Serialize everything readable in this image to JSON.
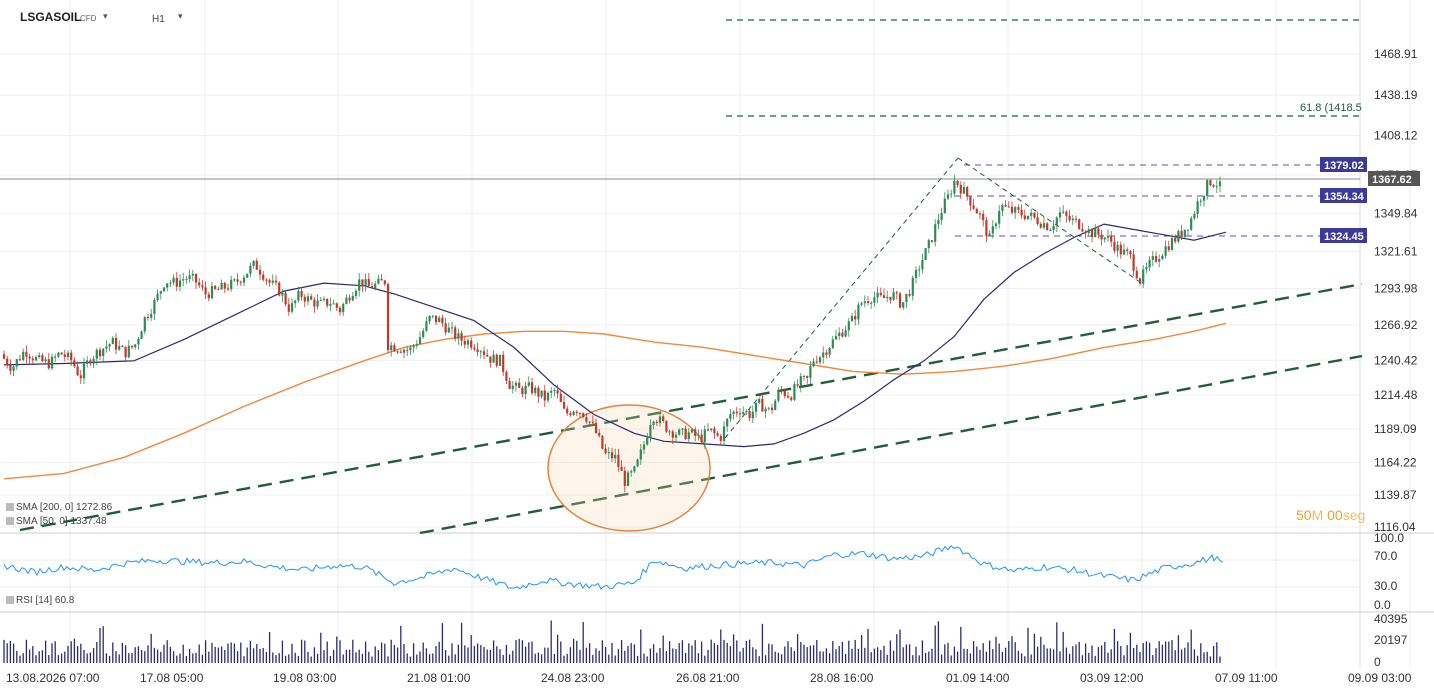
{
  "header": {
    "symbol": "LSGASOIL",
    "symbol_type": "CFD",
    "symbol_dropdown_icon": "chevron-down-icon",
    "timeframe": "H1",
    "timeframe_dropdown_icon": "chevron-down-icon"
  },
  "countdown": {
    "minutes": "50",
    "min_unit": "M",
    "seconds": "00",
    "sec_unit": "seg"
  },
  "legend": {
    "sma200": "SMA [200, 0] 1272.86",
    "sma50": "SMA [50, 0] 1337.48",
    "rsi": "RSI [14] 60.8"
  },
  "price_axis": {
    "labels": [
      "1468.91",
      "1438.19",
      "1408.12",
      "1378.67",
      "1349.84",
      "1321.61",
      "1293.98",
      "1266.92",
      "1240.42",
      "1214.48",
      "1189.09",
      "1164.22",
      "1139.87",
      "1116.04"
    ]
  },
  "rsi_axis": {
    "labels": [
      "100.0",
      "70.0",
      "30.0",
      "0.0"
    ]
  },
  "volume_axis": {
    "labels": [
      "40395",
      "20197",
      "0"
    ]
  },
  "time_axis": {
    "labels": [
      "13.08.2026 07:00",
      "17.08 05:00",
      "19.08 03:00",
      "21.08 01:00",
      "24.08 23:00",
      "26.08 21:00",
      "28.08 16:00",
      "01.09 14:00",
      "03.09 12:00",
      "07.09 11:00",
      "09.09 03:00"
    ]
  },
  "price_tags": {
    "current": "1367.62",
    "level1": "1379.02",
    "level2": "1354.34",
    "level3": "1324.45",
    "fib": "61.8 (1418.5"
  },
  "colors": {
    "sma200": "#f08a3c",
    "sma50": "#2b2b73",
    "rsi": "#2196f3",
    "volume": "#2b2b73",
    "bull": "#2e8b57",
    "bear": "#c0392b",
    "trend": "#1f5e3a",
    "tag_bg": "#3a3a9a",
    "current_tag_bg": "#555555",
    "ellipse": "#e8823a"
  },
  "chart_data": {
    "type": "candlestick",
    "title": "LSGASOIL H1",
    "ylim": [
      1105,
      1495
    ],
    "x_categories": [
      "13.08.2026 07:00",
      "17.08 05:00",
      "19.08 03:00",
      "21.08 01:00",
      "24.08 23:00",
      "26.08 21:00",
      "28.08 16:00",
      "01.09 14:00",
      "03.09 12:00",
      "07.09 11:00"
    ],
    "close_path": [
      [
        0,
        1245
      ],
      [
        12,
        1235
      ],
      [
        25,
        1248
      ],
      [
        38,
        1240
      ],
      [
        50,
        1238
      ],
      [
        60,
        1246
      ],
      [
        72,
        1240
      ],
      [
        80,
        1228
      ],
      [
        90,
        1242
      ],
      [
        100,
        1248
      ],
      [
        112,
        1254
      ],
      [
        125,
        1246
      ],
      [
        135,
        1252
      ],
      [
        145,
        1272
      ],
      [
        155,
        1284
      ],
      [
        165,
        1300
      ],
      [
        175,
        1298
      ],
      [
        185,
        1302
      ],
      [
        195,
        1300
      ],
      [
        205,
        1290
      ],
      [
        215,
        1292
      ],
      [
        225,
        1295
      ],
      [
        235,
        1298
      ],
      [
        245,
        1305
      ],
      [
        255,
        1312
      ],
      [
        262,
        1306
      ],
      [
        270,
        1298
      ],
      [
        280,
        1292
      ],
      [
        290,
        1278
      ],
      [
        300,
        1290
      ],
      [
        310,
        1285
      ],
      [
        320,
        1282
      ],
      [
        330,
        1284
      ],
      [
        340,
        1278
      ],
      [
        350,
        1290
      ],
      [
        360,
        1300
      ],
      [
        368,
        1295
      ],
      [
        378,
        1297
      ],
      [
        386,
        1300
      ],
      [
        388,
        1252
      ],
      [
        398,
        1250
      ],
      [
        410,
        1248
      ],
      [
        420,
        1258
      ],
      [
        430,
        1272
      ],
      [
        440,
        1270
      ],
      [
        450,
        1262
      ],
      [
        460,
        1256
      ],
      [
        470,
        1254
      ],
      [
        480,
        1250
      ],
      [
        490,
        1242
      ],
      [
        500,
        1240
      ],
      [
        510,
        1222
      ],
      [
        520,
        1218
      ],
      [
        530,
        1220
      ],
      [
        545,
        1212
      ],
      [
        555,
        1218
      ],
      [
        565,
        1200
      ],
      [
        575,
        1205
      ],
      [
        585,
        1200
      ],
      [
        595,
        1188
      ],
      [
        605,
        1170
      ],
      [
        615,
        1168
      ],
      [
        625,
        1150
      ],
      [
        635,
        1158
      ],
      [
        645,
        1180
      ],
      [
        652,
        1200
      ],
      [
        660,
        1195
      ],
      [
        670,
        1188
      ],
      [
        680,
        1185
      ],
      [
        690,
        1186
      ],
      [
        700,
        1182
      ],
      [
        710,
        1188
      ],
      [
        720,
        1182
      ],
      [
        730,
        1200
      ],
      [
        740,
        1204
      ],
      [
        750,
        1200
      ],
      [
        760,
        1208
      ],
      [
        770,
        1202
      ],
      [
        780,
        1218
      ],
      [
        790,
        1214
      ],
      [
        800,
        1224
      ],
      [
        808,
        1226
      ],
      [
        812,
        1240
      ],
      [
        822,
        1245
      ],
      [
        832,
        1254
      ],
      [
        842,
        1262
      ],
      [
        852,
        1270
      ],
      [
        862,
        1284
      ],
      [
        872,
        1288
      ],
      [
        882,
        1286
      ],
      [
        892,
        1290
      ],
      [
        902,
        1282
      ],
      [
        912,
        1296
      ],
      [
        920,
        1312
      ],
      [
        930,
        1328
      ],
      [
        940,
        1350
      ],
      [
        948,
        1362
      ],
      [
        955,
        1375
      ],
      [
        962,
        1368
      ],
      [
        970,
        1360
      ],
      [
        980,
        1348
      ],
      [
        990,
        1330
      ],
      [
        1000,
        1356
      ],
      [
        1010,
        1352
      ],
      [
        1020,
        1350
      ],
      [
        1030,
        1348
      ],
      [
        1040,
        1344
      ],
      [
        1050,
        1340
      ],
      [
        1060,
        1350
      ],
      [
        1070,
        1345
      ],
      [
        1080,
        1342
      ],
      [
        1090,
        1336
      ],
      [
        1100,
        1334
      ],
      [
        1110,
        1330
      ],
      [
        1120,
        1322
      ],
      [
        1130,
        1318
      ],
      [
        1140,
        1300
      ],
      [
        1150,
        1312
      ],
      [
        1160,
        1320
      ],
      [
        1170,
        1328
      ],
      [
        1180,
        1334
      ],
      [
        1190,
        1344
      ],
      [
        1200,
        1362
      ],
      [
        1210,
        1374
      ],
      [
        1218,
        1372
      ],
      [
        1222,
        1367
      ]
    ],
    "sma50_path": [
      [
        0,
        1237
      ],
      [
        60,
        1238
      ],
      [
        130,
        1240
      ],
      [
        180,
        1256
      ],
      [
        230,
        1274
      ],
      [
        280,
        1292
      ],
      [
        320,
        1298
      ],
      [
        360,
        1296
      ],
      [
        390,
        1290
      ],
      [
        430,
        1280
      ],
      [
        470,
        1270
      ],
      [
        510,
        1250
      ],
      [
        550,
        1222
      ],
      [
        590,
        1200
      ],
      [
        630,
        1186
      ],
      [
        660,
        1180
      ],
      [
        700,
        1178
      ],
      [
        740,
        1176
      ],
      [
        770,
        1178
      ],
      [
        800,
        1186
      ],
      [
        830,
        1196
      ],
      [
        860,
        1210
      ],
      [
        890,
        1226
      ],
      [
        920,
        1240
      ],
      [
        950,
        1258
      ],
      [
        980,
        1286
      ],
      [
        1010,
        1306
      ],
      [
        1040,
        1320
      ],
      [
        1070,
        1332
      ],
      [
        1100,
        1342
      ],
      [
        1130,
        1338
      ],
      [
        1160,
        1334
      ],
      [
        1190,
        1330
      ],
      [
        1222,
        1336
      ]
    ],
    "sma200_path": [
      [
        0,
        1152
      ],
      [
        60,
        1156
      ],
      [
        120,
        1168
      ],
      [
        180,
        1186
      ],
      [
        240,
        1206
      ],
      [
        300,
        1224
      ],
      [
        360,
        1240
      ],
      [
        400,
        1250
      ],
      [
        440,
        1256
      ],
      [
        480,
        1260
      ],
      [
        520,
        1262
      ],
      [
        560,
        1262
      ],
      [
        600,
        1260
      ],
      [
        650,
        1254
      ],
      [
        700,
        1250
      ],
      [
        750,
        1244
      ],
      [
        800,
        1238
      ],
      [
        850,
        1232
      ],
      [
        900,
        1230
      ],
      [
        950,
        1232
      ],
      [
        1000,
        1236
      ],
      [
        1050,
        1242
      ],
      [
        1100,
        1250
      ],
      [
        1150,
        1256
      ],
      [
        1190,
        1262
      ],
      [
        1222,
        1268
      ]
    ],
    "fib_label": "61.8 (1418.5",
    "levels": [
      1379.02,
      1367.62,
      1354.34,
      1324.45,
      1418.5,
      1478
    ],
    "rsi_path": [
      [
        0,
        62
      ],
      [
        30,
        52
      ],
      [
        60,
        60
      ],
      [
        90,
        55
      ],
      [
        120,
        65
      ],
      [
        150,
        70
      ],
      [
        180,
        68
      ],
      [
        210,
        66
      ],
      [
        240,
        68
      ],
      [
        270,
        60
      ],
      [
        300,
        55
      ],
      [
        330,
        62
      ],
      [
        360,
        60
      ],
      [
        390,
        36
      ],
      [
        420,
        45
      ],
      [
        450,
        58
      ],
      [
        480,
        42
      ],
      [
        510,
        28
      ],
      [
        540,
        40
      ],
      [
        570,
        34
      ],
      [
        600,
        30
      ],
      [
        630,
        36
      ],
      [
        650,
        70
      ],
      [
        680,
        58
      ],
      [
        710,
        62
      ],
      [
        740,
        65
      ],
      [
        770,
        66
      ],
      [
        800,
        62
      ],
      [
        830,
        78
      ],
      [
        860,
        80
      ],
      [
        890,
        72
      ],
      [
        920,
        76
      ],
      [
        950,
        92
      ],
      [
        980,
        64
      ],
      [
        1010,
        54
      ],
      [
        1040,
        60
      ],
      [
        1070,
        55
      ],
      [
        1100,
        46
      ],
      [
        1130,
        40
      ],
      [
        1160,
        58
      ],
      [
        1190,
        66
      ],
      [
        1210,
        74
      ],
      [
        1222,
        61
      ]
    ],
    "rsi_ylim": [
      0,
      100
    ],
    "volume_ylim": [
      0,
      40395
    ]
  }
}
